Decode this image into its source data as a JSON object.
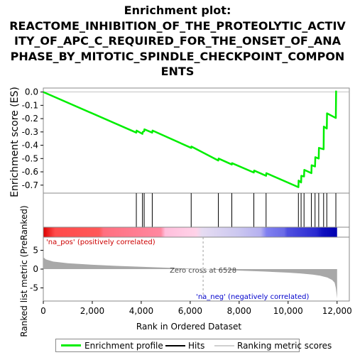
{
  "title_lines": [
    "Enrichment plot:",
    "REACTOME_INHIBITION_OF_THE_PROTEOLYTIC_ACTIV",
    "ITY_OF_APC_C_REQUIRED_FOR_THE_ONSET_OF_ANA",
    "PHASE_BY_MITOTIC_SPINDLE_CHECKPOINT_COMPON",
    "ENTS"
  ],
  "colors": {
    "es_line": "#00ee00",
    "hits": "#000000",
    "metric_fill": "#a8a8a8",
    "axis_text": "#000000",
    "pos_label": "#cc0000",
    "neg_label": "#0000cc",
    "zero_line": "#a0a0a0"
  },
  "chart_data": {
    "type": "line",
    "xlabel": "Rank in Ordered Dataset",
    "x_ticks": [
      0,
      2000,
      4000,
      6000,
      8000,
      10000,
      12000
    ],
    "x_tick_labels": [
      "0",
      "2,000",
      "4,000",
      "6,000",
      "8,000",
      "10,000",
      "12,000"
    ],
    "xlim": [
      0,
      12500
    ],
    "n_genes": 12000,
    "es": {
      "ylabel": "Enrichment score (ES)",
      "ylim": [
        -0.76,
        0.03
      ],
      "y_ticks": [
        0.0,
        -0.1,
        -0.2,
        -0.3,
        -0.4,
        -0.5,
        -0.6,
        -0.7
      ],
      "y_tick_labels": [
        "0.0",
        "-0.1",
        "-0.2",
        "-0.3",
        "-0.4",
        "-0.5",
        "-0.6",
        "-0.7"
      ],
      "series_name": "Enrichment profile",
      "x": [
        0,
        3800,
        3810,
        4050,
        4060,
        4120,
        4130,
        4450,
        4460,
        6040,
        6050,
        7150,
        7160,
        7700,
        7710,
        8600,
        8610,
        9100,
        9110,
        10420,
        10430,
        10530,
        10540,
        10650,
        10660,
        10950,
        10960,
        11100,
        11110,
        11250,
        11260,
        11450,
        11460,
        11580,
        11590,
        11950,
        11960
      ],
      "y": [
        0.0,
        -0.305,
        -0.29,
        -0.315,
        -0.3,
        -0.295,
        -0.28,
        -0.305,
        -0.29,
        -0.42,
        -0.41,
        -0.515,
        -0.5,
        -0.545,
        -0.535,
        -0.605,
        -0.59,
        -0.63,
        -0.61,
        -0.715,
        -0.665,
        -0.68,
        -0.63,
        -0.635,
        -0.585,
        -0.61,
        -0.55,
        -0.56,
        -0.49,
        -0.5,
        -0.42,
        -0.43,
        -0.26,
        -0.275,
        -0.16,
        -0.195,
        0.01
      ]
    },
    "hits": [
      3800,
      4050,
      4120,
      4450,
      6040,
      7150,
      7700,
      8600,
      9100,
      10420,
      10530,
      10650,
      10950,
      11100,
      11250,
      11450,
      11580,
      11950
    ],
    "hits_legend": "Hits",
    "ranked_metric": {
      "ylabel": "Ranked list metric (PreRanked)",
      "ylim": [
        -8.5,
        8.5
      ],
      "y_ticks": [
        5,
        0,
        -5
      ],
      "y_tick_labels": [
        "5",
        "0",
        "-5"
      ],
      "legend": "Ranking metric scores",
      "zero_cross": 6528,
      "zero_cross_label": "Zero cross at 6528",
      "pos_label": "'na_pos' (positively correlated)",
      "neg_label": "'na_neg' (negatively correlated)",
      "profile_x": [
        0,
        100,
        400,
        1000,
        2000,
        3000,
        4000,
        5000,
        6000,
        6528,
        7000,
        8000,
        9000,
        10000,
        10500,
        11000,
        11300,
        11600,
        11800,
        11900,
        11950,
        12000
      ],
      "profile_y": [
        3.2,
        2.6,
        2.0,
        1.55,
        1.15,
        0.85,
        0.6,
        0.38,
        0.12,
        0.0,
        -0.15,
        -0.4,
        -0.65,
        -0.95,
        -1.15,
        -1.45,
        -1.75,
        -2.25,
        -2.9,
        -3.6,
        -5.0,
        -7.8
      ]
    }
  }
}
